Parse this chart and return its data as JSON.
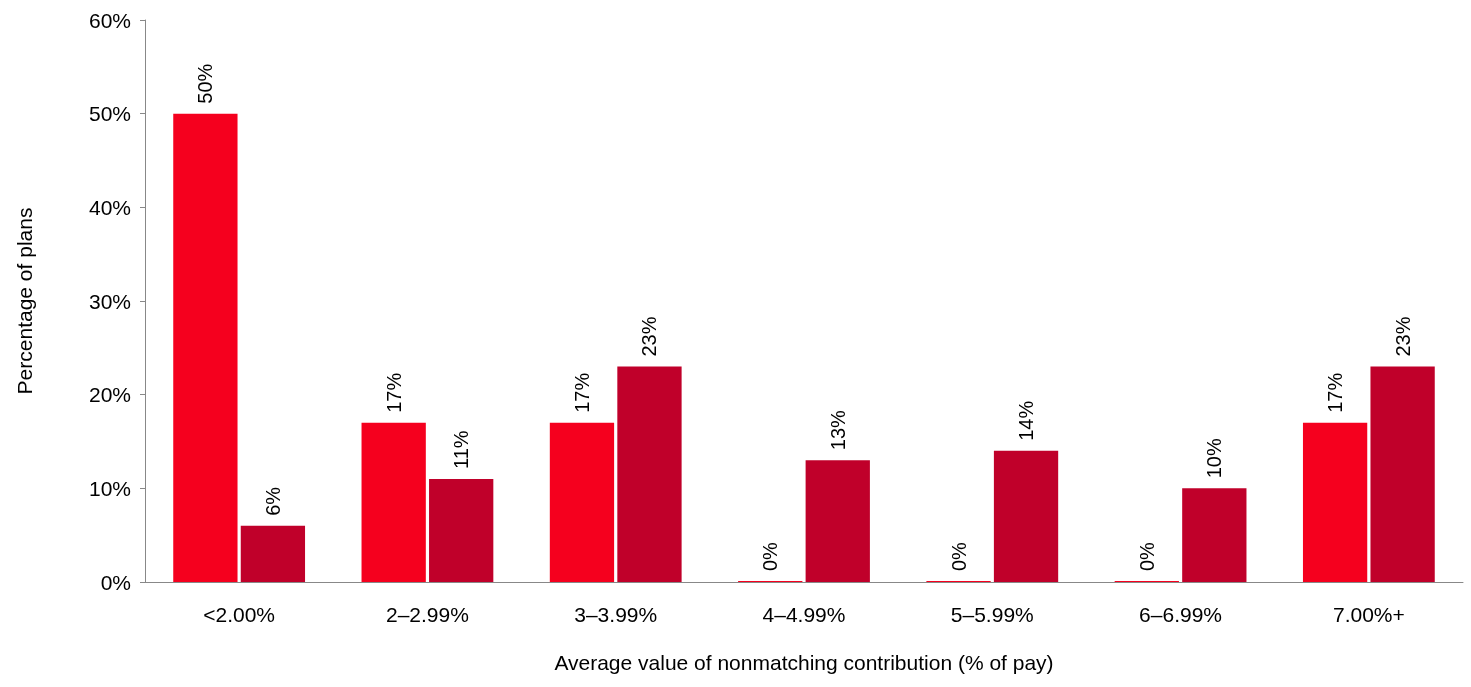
{
  "chart_data": {
    "type": "bar",
    "xlabel": "Average value of nonmatching contribution (% of pay)",
    "ylabel": "Percentage of plans",
    "categories": [
      "<2.00%",
      "2–2.99%",
      "3–3.99%",
      "4–4.99%",
      "5–5.99%",
      "6–6.99%",
      "7.00%+"
    ],
    "series": [
      {
        "color": "#f5001e",
        "values": [
          50,
          17,
          17,
          0,
          0,
          0,
          17
        ],
        "value_labels": [
          "50%",
          "17%",
          "17%",
          "0%",
          "0%",
          "0%",
          "17%"
        ]
      },
      {
        "color": "#c0002a",
        "values": [
          6,
          11,
          23,
          13,
          14,
          10,
          23
        ],
        "value_labels": [
          "6%",
          "11%",
          "23%",
          "13%",
          "14%",
          "10%",
          "23%"
        ]
      }
    ],
    "ylim": [
      0,
      60
    ],
    "yticks": [
      {
        "value": 0,
        "label": "0%"
      },
      {
        "value": 10,
        "label": "10%"
      },
      {
        "value": 20,
        "label": "20%"
      },
      {
        "value": 30,
        "label": "30%"
      },
      {
        "value": 40,
        "label": "40%"
      },
      {
        "value": 50,
        "label": "50%"
      },
      {
        "value": 60,
        "label": "60%"
      }
    ],
    "grid": false
  }
}
